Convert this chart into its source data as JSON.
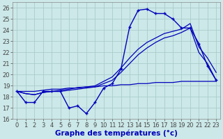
{
  "bg_color": "#cce8e8",
  "grid_color": "#aacccc",
  "line_color": "#0000bb",
  "hours": [
    0,
    1,
    2,
    3,
    4,
    5,
    6,
    7,
    8,
    9,
    10,
    11,
    12,
    13,
    14,
    15,
    16,
    17,
    18,
    19,
    20,
    21,
    22,
    23
  ],
  "temp_main": [
    18.5,
    17.5,
    17.5,
    18.5,
    18.5,
    18.5,
    17.0,
    17.2,
    16.5,
    17.5,
    18.8,
    19.2,
    20.5,
    24.3,
    25.8,
    25.9,
    25.5,
    25.5,
    25.0,
    24.2,
    24.2,
    22.8,
    20.8,
    19.5
  ],
  "flat_line": [
    18.5,
    18.5,
    18.5,
    18.6,
    18.7,
    18.7,
    18.8,
    18.8,
    18.9,
    18.9,
    19.0,
    19.0,
    19.1,
    19.1,
    19.2,
    19.2,
    19.3,
    19.3,
    19.3,
    19.4,
    19.4,
    19.4,
    19.4,
    19.4
  ],
  "rise_line1": [
    18.5,
    18.3,
    18.2,
    18.4,
    18.5,
    18.5,
    18.6,
    18.7,
    18.8,
    18.9,
    19.2,
    19.5,
    20.2,
    21.0,
    21.8,
    22.4,
    22.9,
    23.3,
    23.5,
    23.8,
    24.2,
    22.0,
    21.0,
    19.5
  ],
  "rise_line2": [
    18.5,
    18.3,
    18.2,
    18.4,
    18.5,
    18.6,
    18.7,
    18.85,
    18.9,
    19.0,
    19.4,
    19.8,
    20.6,
    21.5,
    22.3,
    22.9,
    23.3,
    23.7,
    23.9,
    24.1,
    24.6,
    22.5,
    21.5,
    20.2
  ],
  "ylim_min": 16,
  "ylim_max": 26.5,
  "yticks": [
    16,
    17,
    18,
    19,
    20,
    21,
    22,
    23,
    24,
    25,
    26
  ],
  "xlabel": "Graphe des températures (°c)",
  "tick_fontsize": 6.0,
  "xlabel_fontsize": 7.5
}
